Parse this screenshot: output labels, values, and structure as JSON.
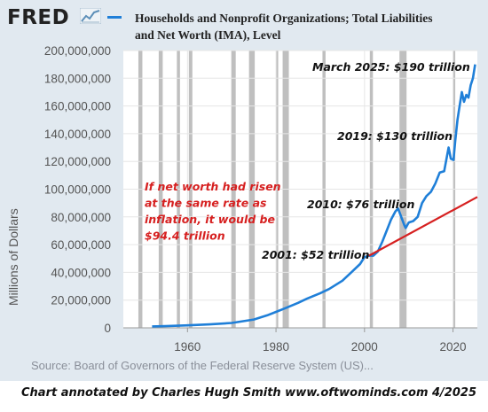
{
  "header": {
    "logo_text": "FRED",
    "logo_icon": "line-graph-icon",
    "series_title": "Households and Nonprofit Organizations; Total Liabilities and Net Worth (IMA), Level"
  },
  "colors": {
    "plot_background": "#ffffff",
    "frame_background": "#e1e9f0",
    "series": "#1f7fd8",
    "recession": "#b4b4b4",
    "inflation_line": "#d62020",
    "annotation_red": "#d62020"
  },
  "source_text": "Source: Board of Governors of the Federal Reserve System (US)...",
  "credit_text": "Chart annotated by Charles Hugh Smith  www.oftwominds.com  4/2025",
  "chart_data": {
    "type": "line",
    "ylabel": "Millions of Dollars",
    "ylim": [
      0,
      200000000
    ],
    "xlim": [
      1945.5,
      2025.5
    ],
    "y_ticks": [
      "0",
      "20,000,000",
      "40,000,000",
      "60,000,000",
      "80,000,000",
      "100,000,000",
      "120,000,000",
      "140,000,000",
      "160,000,000",
      "180,000,000",
      "200,000,000"
    ],
    "x_ticks": [
      "1960",
      "1980",
      "2000",
      "2020"
    ],
    "grid": true,
    "recessions": [
      [
        1948.9,
        1949.8
      ],
      [
        1953.5,
        1954.4
      ],
      [
        1957.6,
        1958.3
      ],
      [
        1960.3,
        1961.1
      ],
      [
        1969.9,
        1970.9
      ],
      [
        1973.9,
        1975.2
      ],
      [
        1980.0,
        1980.5
      ],
      [
        1981.5,
        1982.9
      ],
      [
        1990.5,
        1991.2
      ],
      [
        2001.2,
        2001.9
      ],
      [
        2007.9,
        2009.5
      ],
      [
        2020.1,
        2020.4
      ]
    ],
    "series": [
      {
        "name": "Households and Nonprofit Organizations; Total Liabilities and Net Worth (IMA), Level",
        "color": "#1f7fd8",
        "points": [
          [
            1952,
            1000000
          ],
          [
            1955,
            1200000
          ],
          [
            1960,
            1800000
          ],
          [
            1965,
            2500000
          ],
          [
            1970,
            3500000
          ],
          [
            1975,
            6000000
          ],
          [
            1978,
            9000000
          ],
          [
            1980,
            11500000
          ],
          [
            1982,
            14000000
          ],
          [
            1985,
            18000000
          ],
          [
            1987,
            21000000
          ],
          [
            1990,
            25000000
          ],
          [
            1992,
            28000000
          ],
          [
            1995,
            34000000
          ],
          [
            1997,
            40000000
          ],
          [
            1999,
            46000000
          ],
          [
            2000,
            51000000
          ],
          [
            2001,
            52000000
          ],
          [
            2002,
            52000000
          ],
          [
            2003,
            55000000
          ],
          [
            2004,
            62000000
          ],
          [
            2005,
            70000000
          ],
          [
            2006,
            78000000
          ],
          [
            2007,
            84000000
          ],
          [
            2007.6,
            86000000
          ],
          [
            2008.3,
            80000000
          ],
          [
            2009.0,
            74000000
          ],
          [
            2009.3,
            72000000
          ],
          [
            2010,
            76000000
          ],
          [
            2011,
            77000000
          ],
          [
            2012,
            80000000
          ],
          [
            2013,
            90000000
          ],
          [
            2014,
            95000000
          ],
          [
            2015,
            98000000
          ],
          [
            2016,
            104000000
          ],
          [
            2017,
            112000000
          ],
          [
            2018,
            113000000
          ],
          [
            2019,
            130000000
          ],
          [
            2019.5,
            122000000
          ],
          [
            2020.1,
            121000000
          ],
          [
            2020.5,
            135000000
          ],
          [
            2021,
            150000000
          ],
          [
            2021.5,
            160000000
          ],
          [
            2022,
            170000000
          ],
          [
            2022.5,
            163000000
          ],
          [
            2023,
            168000000
          ],
          [
            2023.5,
            166000000
          ],
          [
            2024,
            175000000
          ],
          [
            2024.5,
            180000000
          ],
          [
            2025,
            190000000
          ]
        ]
      },
      {
        "name": "",
        "color": "#d62020",
        "points": [
          [
            2001,
            52000000
          ],
          [
            2025.5,
            94400000
          ]
        ]
      }
    ],
    "annotations": [
      {
        "text": "March 2025: $190 trillion",
        "x": 2025,
        "y": 190000000
      },
      {
        "text": "2019: $130 trillion",
        "x": 2019,
        "y": 130000000
      },
      {
        "text": "2010: $76 trillion",
        "x": 2010,
        "y": 76000000
      },
      {
        "text": "2001: $52 trillion",
        "x": 2001,
        "y": 52000000
      }
    ],
    "inflation_note": [
      "If net worth had risen",
      "at the same rate as",
      "inflation, it would be",
      "$94.4 trillion"
    ]
  }
}
